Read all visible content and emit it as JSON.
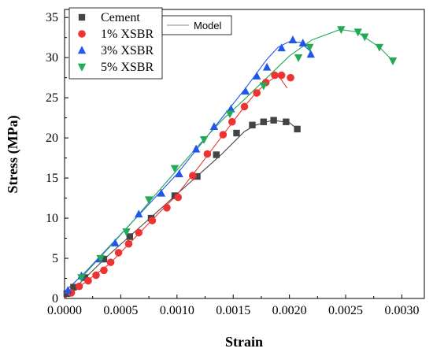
{
  "chart_data": {
    "type": "scatter",
    "xlabel": "Strain",
    "ylabel": "Stress (MPa)",
    "xlim": [
      0,
      0.0032
    ],
    "ylim": [
      0,
      36
    ],
    "xticks": [
      "0.0000",
      "0.0005",
      "0.0010",
      "0.0015",
      "0.0020",
      "0.0025",
      "0.0030"
    ],
    "yticks": [
      "0",
      "5",
      "10",
      "15",
      "20",
      "25",
      "30",
      "35"
    ],
    "grid": false,
    "legend_position": "top-left",
    "model_legend_label": "Model",
    "series": [
      {
        "name": "Cement",
        "marker": "square",
        "color": "#444444",
        "points": [
          [
            2e-05,
            0.6
          ],
          [
            8e-05,
            1.4
          ],
          [
            0.00018,
            2.6
          ],
          [
            0.00035,
            4.9
          ],
          [
            0.00058,
            7.7
          ],
          [
            0.00077,
            10.0
          ],
          [
            0.00098,
            12.8
          ],
          [
            0.00118,
            15.2
          ],
          [
            0.00135,
            17.9
          ],
          [
            0.00153,
            20.6
          ],
          [
            0.00167,
            21.6
          ],
          [
            0.00177,
            22.0
          ],
          [
            0.00186,
            22.2
          ],
          [
            0.00197,
            22.0
          ],
          [
            0.00207,
            21.1
          ]
        ]
      },
      {
        "name": "1% XSBR",
        "marker": "circle",
        "color": "#ee3333",
        "points": [
          [
            6e-05,
            0.7
          ],
          [
            0.00013,
            1.5
          ],
          [
            0.00021,
            2.2
          ],
          [
            0.00028,
            2.9
          ],
          [
            0.00035,
            3.5
          ],
          [
            0.00041,
            4.5
          ],
          [
            0.00048,
            5.7
          ],
          [
            0.00057,
            6.8
          ],
          [
            0.00066,
            8.2
          ],
          [
            0.00078,
            9.7
          ],
          [
            0.00091,
            11.3
          ],
          [
            0.00101,
            12.6
          ],
          [
            0.00114,
            15.3
          ],
          [
            0.00127,
            18.0
          ],
          [
            0.00141,
            20.4
          ],
          [
            0.00149,
            22.0
          ],
          [
            0.0016,
            23.9
          ],
          [
            0.00171,
            25.6
          ],
          [
            0.00179,
            26.9
          ],
          [
            0.00187,
            27.8
          ],
          [
            0.00193,
            27.8
          ],
          [
            0.00201,
            27.5
          ]
        ]
      },
      {
        "name": "3% XSBR",
        "marker": "triangle-up",
        "color": "#2255ee",
        "points": [
          [
            3e-05,
            1.0
          ],
          [
            0.00015,
            2.8
          ],
          [
            0.00031,
            4.9
          ],
          [
            0.00045,
            6.9
          ],
          [
            0.00066,
            10.5
          ],
          [
            0.00086,
            13.1
          ],
          [
            0.00102,
            15.5
          ],
          [
            0.00117,
            18.6
          ],
          [
            0.00133,
            21.4
          ],
          [
            0.00148,
            23.6
          ],
          [
            0.00161,
            25.8
          ],
          [
            0.00171,
            27.7
          ],
          [
            0.0018,
            28.8
          ],
          [
            0.00193,
            31.2
          ],
          [
            0.00203,
            32.2
          ],
          [
            0.00212,
            31.8
          ],
          [
            0.00219,
            30.4
          ]
        ]
      },
      {
        "name": "5% XSBR",
        "marker": "triangle-down",
        "color": "#22aa55",
        "points": [
          [
            0.00015,
            2.6
          ],
          [
            0.00032,
            5.0
          ],
          [
            0.00055,
            8.3
          ],
          [
            0.00075,
            12.3
          ],
          [
            0.00098,
            16.2
          ],
          [
            0.00124,
            19.8
          ],
          [
            0.00147,
            23.0
          ],
          [
            0.00177,
            26.5
          ],
          [
            0.00208,
            30.0
          ],
          [
            0.00218,
            31.3
          ],
          [
            0.00246,
            33.5
          ],
          [
            0.00261,
            33.2
          ],
          [
            0.00267,
            32.6
          ],
          [
            0.0028,
            31.3
          ],
          [
            0.00292,
            29.6
          ]
        ]
      }
    ],
    "models": [
      {
        "name": "Cement",
        "color": "#444444",
        "points": [
          [
            0,
            0
          ],
          [
            0.0002,
            2.8
          ],
          [
            0.0004,
            5.5
          ],
          [
            0.0006,
            8.0
          ],
          [
            0.0008,
            10.5
          ],
          [
            0.001,
            13.0
          ],
          [
            0.0012,
            15.5
          ],
          [
            0.0014,
            18.0
          ],
          [
            0.0016,
            20.8
          ],
          [
            0.0017,
            21.6
          ],
          [
            0.00185,
            22.2
          ],
          [
            0.002,
            21.9
          ],
          [
            0.00207,
            21.1
          ]
        ]
      },
      {
        "name": "1% XSBR",
        "color": "#ee3333",
        "points": [
          [
            0,
            0
          ],
          [
            0.0002,
            2.2
          ],
          [
            0.0004,
            4.3
          ],
          [
            0.0006,
            7.2
          ],
          [
            0.0008,
            10.1
          ],
          [
            0.001,
            12.9
          ],
          [
            0.0012,
            16.5
          ],
          [
            0.0014,
            20.2
          ],
          [
            0.0016,
            23.9
          ],
          [
            0.0017,
            25.6
          ],
          [
            0.0018,
            26.9
          ],
          [
            0.0019,
            27.8
          ],
          [
            0.00198,
            26.2
          ]
        ]
      },
      {
        "name": "3% XSBR",
        "color": "#2255ee",
        "points": [
          [
            0,
            0.8
          ],
          [
            0.0002,
            3.5
          ],
          [
            0.0004,
            6.5
          ],
          [
            0.0006,
            9.5
          ],
          [
            0.0008,
            12.5
          ],
          [
            0.001,
            15.5
          ],
          [
            0.0012,
            19.0
          ],
          [
            0.0014,
            22.5
          ],
          [
            0.0016,
            26.0
          ],
          [
            0.0018,
            29.8
          ],
          [
            0.0019,
            31.3
          ],
          [
            0.002,
            32.0
          ],
          [
            0.0021,
            31.9
          ],
          [
            0.0022,
            30.6
          ]
        ]
      },
      {
        "name": "5% XSBR",
        "color": "#22aa55",
        "points": [
          [
            0.00015,
            2.6
          ],
          [
            0.0004,
            6.4
          ],
          [
            0.0006,
            9.5
          ],
          [
            0.0008,
            12.8
          ],
          [
            0.001,
            16.0
          ],
          [
            0.0012,
            19.2
          ],
          [
            0.0014,
            22.2
          ],
          [
            0.0016,
            24.8
          ],
          [
            0.0018,
            27.5
          ],
          [
            0.002,
            30.2
          ],
          [
            0.0022,
            32.2
          ],
          [
            0.00245,
            33.5
          ],
          [
            0.0026,
            33.2
          ],
          [
            0.0028,
            31.3
          ],
          [
            0.00292,
            29.6
          ]
        ]
      }
    ]
  }
}
